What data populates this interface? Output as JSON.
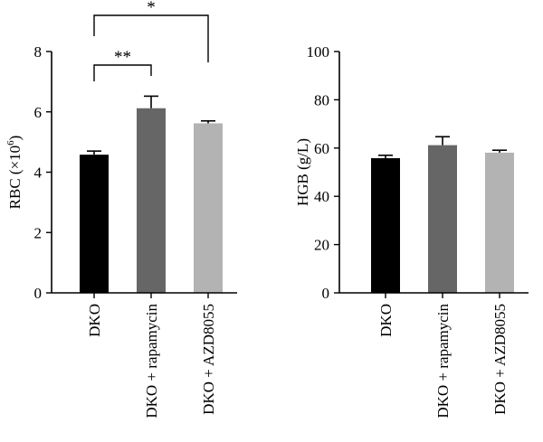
{
  "chart_data": [
    {
      "type": "bar",
      "categories": [
        "DKO",
        "DKO + rapamycin",
        "DKO + AZD8055"
      ],
      "values": [
        4.58,
        6.12,
        5.62
      ],
      "errors": [
        0.12,
        0.4,
        0.08
      ],
      "colors": [
        "#000000",
        "#666666",
        "#b3b3b3"
      ],
      "ylabel_base": "RBC (×10",
      "ylabel_sup": "6",
      "ylabel_end": ")",
      "ylim": [
        0,
        8
      ],
      "yticks": [
        0,
        2,
        4,
        6,
        8
      ],
      "significance": [
        {
          "from": 0,
          "to": 1,
          "label": "**"
        },
        {
          "from": 0,
          "to": 2,
          "label": "*"
        }
      ]
    },
    {
      "type": "bar",
      "categories": [
        "DKO",
        "DKO + rapamycin",
        "DKO + AZD8055"
      ],
      "values": [
        55.8,
        61.2,
        58.1
      ],
      "errors": [
        1.2,
        3.5,
        1.0
      ],
      "colors": [
        "#000000",
        "#666666",
        "#b3b3b3"
      ],
      "ylabel": "HGB (g/L)",
      "ylim": [
        0,
        100
      ],
      "yticks": [
        0,
        20,
        40,
        60,
        80,
        100
      ],
      "significance": []
    }
  ]
}
